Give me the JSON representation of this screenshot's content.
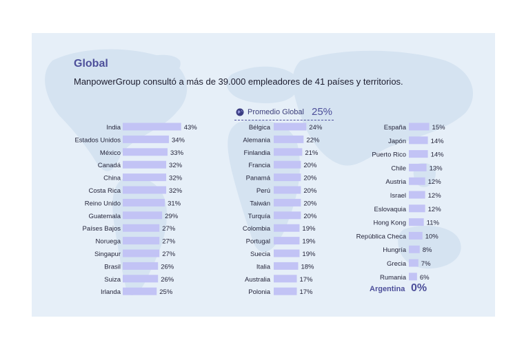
{
  "title": "Global",
  "subtitle": "ManpowerGroup consultó a más de 39.000 empleadores de 41 países y territorios.",
  "average": {
    "label": "Promedio Global",
    "value": "25%"
  },
  "colors": {
    "bar": "#c2c3f5",
    "accent": "#4d4f9a",
    "background": "#e6eff8",
    "map": "#d6e4f1"
  },
  "chart_data": [
    {
      "type": "bar",
      "orientation": "horizontal",
      "unit": "%",
      "categories": [
        "India",
        "Estados Unidos",
        "México",
        "Canadá",
        "China",
        "Costa Rica",
        "Reino Unido",
        "Guatemala",
        "Países Bajos",
        "Noruega",
        "Singapur",
        "Brasil",
        "Suiza",
        "Irlanda"
      ],
      "values": [
        43,
        34,
        33,
        32,
        32,
        32,
        31,
        29,
        27,
        27,
        27,
        26,
        26,
        25
      ]
    },
    {
      "type": "bar",
      "orientation": "horizontal",
      "unit": "%",
      "categories": [
        "Bélgica",
        "Alemania",
        "Finlandia",
        "Francia",
        "Panamá",
        "Perú",
        "Taiwán",
        "Turquía",
        "Colombia",
        "Portugal",
        "Suecia",
        "Italia",
        "Australia",
        "Polonia"
      ],
      "values": [
        24,
        22,
        21,
        20,
        20,
        20,
        20,
        20,
        19,
        19,
        19,
        18,
        17,
        17
      ]
    },
    {
      "type": "bar",
      "orientation": "horizontal",
      "unit": "%",
      "categories": [
        "España",
        "Japón",
        "Puerto Rico",
        "Chile",
        "Austria",
        "Israel",
        "Eslovaquia",
        "Hong Kong",
        "República Checa",
        "Hungría",
        "Grecia",
        "Rumania"
      ],
      "values": [
        15,
        14,
        14,
        13,
        12,
        12,
        12,
        11,
        10,
        8,
        7,
        6
      ]
    }
  ],
  "highlight": {
    "country": "Argentina",
    "value": "0%"
  }
}
